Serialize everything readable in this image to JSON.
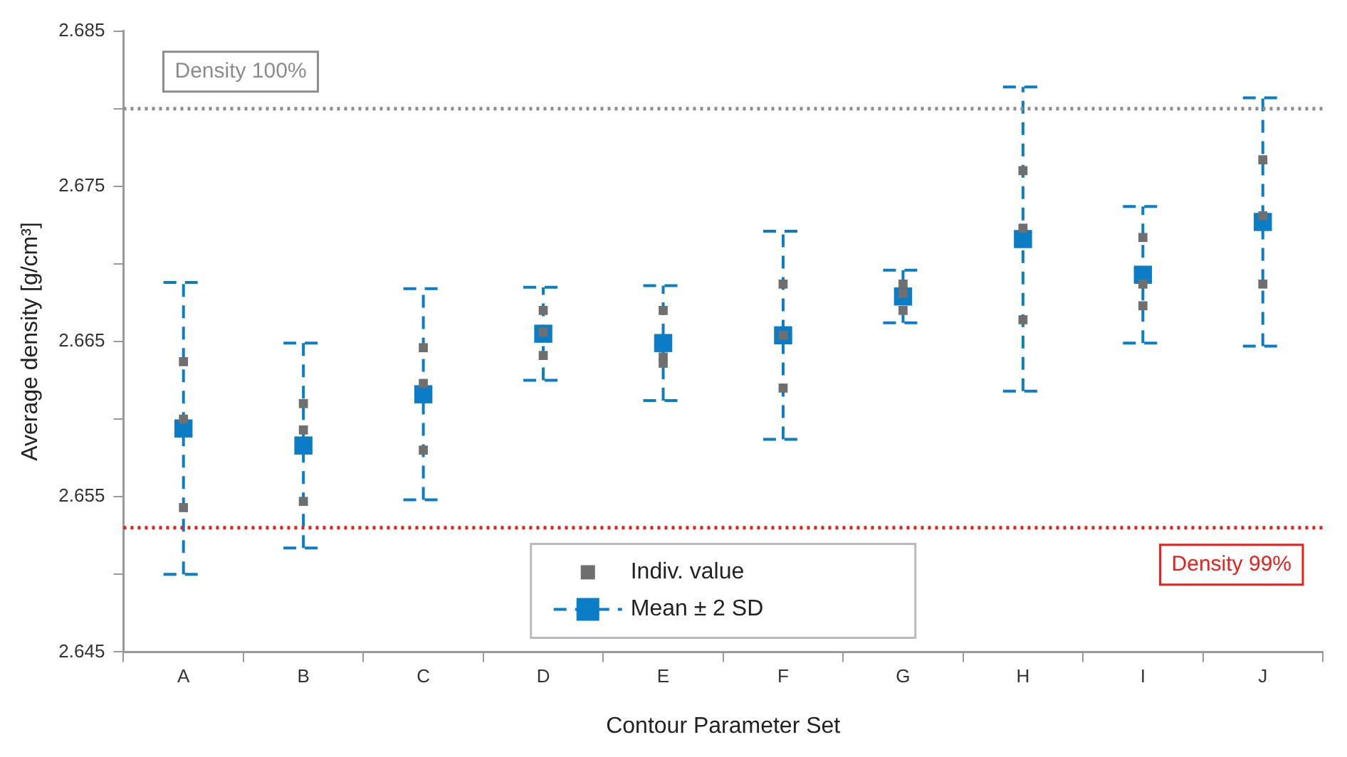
{
  "chart_data": {
    "type": "scatter",
    "xlabel": "Contour Parameter Set",
    "ylabel": "Average density [g/cm³]",
    "categories": [
      "A",
      "B",
      "C",
      "D",
      "E",
      "F",
      "G",
      "H",
      "I",
      "J"
    ],
    "ylim": [
      2.645,
      2.685
    ],
    "yticks": [
      2.645,
      {
        "value": 2.65,
        "label": null
      },
      2.655,
      {
        "value": 2.66,
        "label": null
      },
      2.665,
      {
        "value": 2.67,
        "label": null
      },
      2.675,
      {
        "value": 2.68,
        "label": null
      },
      2.685
    ],
    "grid": false,
    "legend": "bottom",
    "marker": "square",
    "series": [
      {
        "name": "Indiv. value",
        "color": "#6f6f6f",
        "x": [
          "A",
          "A",
          "A",
          "B",
          "B",
          "B",
          "C",
          "C",
          "C",
          "D",
          "D",
          "D",
          "E",
          "E",
          "E",
          "F",
          "F",
          "F",
          "G",
          "G",
          "G",
          "H",
          "H",
          "H",
          "I",
          "I",
          "I",
          "J",
          "J",
          "J"
        ],
        "values": [
          2.6637,
          2.66,
          2.6543,
          2.661,
          2.6593,
          2.6547,
          2.6646,
          2.6623,
          2.658,
          2.667,
          2.6656,
          2.6641,
          2.667,
          2.664,
          2.6636,
          2.6687,
          2.6654,
          2.662,
          2.6687,
          2.6681,
          2.667,
          2.676,
          2.6723,
          2.6664,
          2.6717,
          2.6687,
          2.6673,
          2.6767,
          2.6731,
          2.6687
        ]
      },
      {
        "name": "Mean ± 2 SD",
        "color": "#0a7dc6",
        "line_style": "dashed",
        "values": [
          2.6594,
          2.6583,
          2.6616,
          2.6655,
          2.6649,
          2.6654,
          2.6679,
          2.6716,
          2.6693,
          2.6727
        ],
        "errors": [
          0.0094,
          0.0066,
          0.0068,
          0.003,
          0.0037,
          0.0067,
          0.0017,
          0.0098,
          0.0044,
          0.008
        ]
      }
    ],
    "ref_lines": [
      {
        "axis": "y",
        "value": 2.68,
        "label": "Density 100%",
        "color": "#8c8c8c",
        "line_style": "dotted"
      },
      {
        "axis": "y",
        "value": 2.653,
        "label": "Density 99%",
        "color": "#e8201c",
        "line_style": "dotted"
      }
    ]
  }
}
